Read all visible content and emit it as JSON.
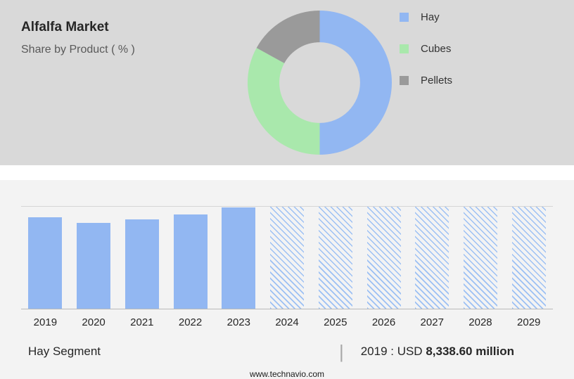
{
  "header": {
    "title": "Alfalfa Market",
    "subtitle": "Share by Product ( % )"
  },
  "chart_data": [
    {
      "type": "pie",
      "donut": true,
      "title": "Share by Product ( % )",
      "labels": [
        "Hay",
        "Cubes",
        "Pellets"
      ],
      "values": [
        50,
        33,
        17
      ],
      "colors": [
        "#92B7F2",
        "#A9E8AC",
        "#9A9A9A"
      ],
      "legend_position": "right"
    },
    {
      "type": "bar",
      "categories": [
        "2019",
        "2020",
        "2021",
        "2022",
        "2023",
        "2024",
        "2025",
        "2026",
        "2027",
        "2028",
        "2029"
      ],
      "values": [
        8338.6,
        7830,
        8150,
        8610,
        9240,
        9300,
        9300,
        9300,
        9300,
        9300,
        9300
      ],
      "forecast_from": "2024",
      "bar_color": "#92B7F2",
      "forecast_hatch_color": "#9CC0F4",
      "ylim": [
        0,
        9300
      ],
      "xlabel": "",
      "ylabel": "",
      "annotation": "2019 : USD 8,338.60 million",
      "legend_position": "none"
    }
  ],
  "footer": {
    "segment": "Hay Segment",
    "separator": "|",
    "value_prefix": "2019 : USD ",
    "value_bold": "8,338.60 million",
    "website": "www.technavio.com"
  }
}
